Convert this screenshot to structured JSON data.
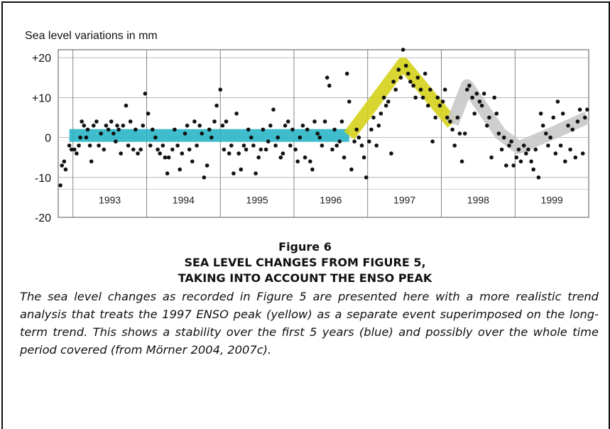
{
  "chart_data": {
    "type": "scatter",
    "ylabel": "Sea level variations in mm",
    "yticks": [
      "+20",
      "+10",
      "0",
      "-10",
      "-20"
    ],
    "ylim": [
      -20,
      22
    ],
    "xlim": [
      1992.8,
      2000.0
    ],
    "year_labels": [
      "1993",
      "1994",
      "1995",
      "1996",
      "1997",
      "1998",
      "1999"
    ],
    "grid": true,
    "series": [
      {
        "values": [
          [
            1992.83,
            -12
          ],
          [
            1992.85,
            -7
          ],
          [
            1992.88,
            -6
          ],
          [
            1992.9,
            -8
          ],
          [
            1992.95,
            -2
          ],
          [
            1992.98,
            -3
          ],
          [
            1993.02,
            -3
          ],
          [
            1993.05,
            -4
          ],
          [
            1993.08,
            -2
          ],
          [
            1993.1,
            0
          ],
          [
            1993.12,
            4
          ],
          [
            1993.15,
            3
          ],
          [
            1993.18,
            0
          ],
          [
            1993.2,
            2
          ],
          [
            1993.23,
            -2
          ],
          [
            1993.25,
            -6
          ],
          [
            1993.28,
            3
          ],
          [
            1993.32,
            4
          ],
          [
            1993.35,
            -2
          ],
          [
            1993.38,
            1
          ],
          [
            1993.42,
            -3
          ],
          [
            1993.45,
            3
          ],
          [
            1993.48,
            2
          ],
          [
            1993.52,
            4
          ],
          [
            1993.55,
            1
          ],
          [
            1993.58,
            -1
          ],
          [
            1993.6,
            3
          ],
          [
            1993.62,
            2
          ],
          [
            1993.65,
            -4
          ],
          [
            1993.68,
            3
          ],
          [
            1993.72,
            8
          ],
          [
            1993.75,
            -2
          ],
          [
            1993.78,
            4
          ],
          [
            1993.82,
            -3
          ],
          [
            1993.85,
            2
          ],
          [
            1993.88,
            -4
          ],
          [
            1993.92,
            -3
          ],
          [
            1993.95,
            3
          ],
          [
            1993.98,
            11
          ],
          [
            1994.02,
            6
          ],
          [
            1994.05,
            -2
          ],
          [
            1994.08,
            2
          ],
          [
            1994.12,
            0
          ],
          [
            1994.15,
            -3
          ],
          [
            1994.18,
            -4
          ],
          [
            1994.22,
            -2
          ],
          [
            1994.25,
            -5
          ],
          [
            1994.28,
            -9
          ],
          [
            1994.3,
            -5
          ],
          [
            1994.35,
            -3
          ],
          [
            1994.38,
            2
          ],
          [
            1994.42,
            -2
          ],
          [
            1994.45,
            -8
          ],
          [
            1994.48,
            -4
          ],
          [
            1994.52,
            1
          ],
          [
            1994.55,
            3
          ],
          [
            1994.58,
            -3
          ],
          [
            1994.62,
            -6
          ],
          [
            1994.65,
            4
          ],
          [
            1994.68,
            -2
          ],
          [
            1994.72,
            3
          ],
          [
            1994.75,
            1
          ],
          [
            1994.78,
            -10
          ],
          [
            1994.82,
            -7
          ],
          [
            1994.85,
            2
          ],
          [
            1994.88,
            0
          ],
          [
            1994.92,
            4
          ],
          [
            1994.95,
            8
          ],
          [
            1995.0,
            12
          ],
          [
            1995.03,
            3
          ],
          [
            1995.05,
            -3
          ],
          [
            1995.08,
            4
          ],
          [
            1995.12,
            -4
          ],
          [
            1995.15,
            -2
          ],
          [
            1995.18,
            -9
          ],
          [
            1995.22,
            6
          ],
          [
            1995.25,
            -4
          ],
          [
            1995.28,
            -8
          ],
          [
            1995.32,
            -2
          ],
          [
            1995.35,
            -3
          ],
          [
            1995.38,
            2
          ],
          [
            1995.42,
            0
          ],
          [
            1995.45,
            -2
          ],
          [
            1995.48,
            -9
          ],
          [
            1995.52,
            -5
          ],
          [
            1995.55,
            -3
          ],
          [
            1995.58,
            2
          ],
          [
            1995.62,
            -3
          ],
          [
            1995.65,
            -1
          ],
          [
            1995.68,
            3
          ],
          [
            1995.72,
            7
          ],
          [
            1995.75,
            -2
          ],
          [
            1995.78,
            0
          ],
          [
            1995.82,
            -5
          ],
          [
            1995.85,
            -4
          ],
          [
            1995.88,
            3
          ],
          [
            1995.92,
            4
          ],
          [
            1995.95,
            -2
          ],
          [
            1995.98,
            2
          ],
          [
            1996.02,
            -3
          ],
          [
            1996.05,
            -6
          ],
          [
            1996.08,
            0
          ],
          [
            1996.12,
            3
          ],
          [
            1996.15,
            -5
          ],
          [
            1996.18,
            2
          ],
          [
            1996.22,
            -6
          ],
          [
            1996.25,
            -8
          ],
          [
            1996.28,
            4
          ],
          [
            1996.32,
            1
          ],
          [
            1996.35,
            0
          ],
          [
            1996.38,
            -2
          ],
          [
            1996.42,
            4
          ],
          [
            1996.45,
            15
          ],
          [
            1996.48,
            13
          ],
          [
            1996.52,
            -3
          ],
          [
            1996.55,
            2
          ],
          [
            1996.58,
            -2
          ],
          [
            1996.62,
            -1
          ],
          [
            1996.65,
            4
          ],
          [
            1996.68,
            -5
          ],
          [
            1996.72,
            16
          ],
          [
            1996.75,
            9
          ],
          [
            1996.78,
            -8
          ],
          [
            1996.82,
            -1
          ],
          [
            1996.85,
            2
          ],
          [
            1996.88,
            0
          ],
          [
            1996.92,
            -2
          ],
          [
            1996.95,
            -5
          ],
          [
            1996.98,
            -10
          ],
          [
            1997.02,
            -1
          ],
          [
            1997.05,
            2
          ],
          [
            1997.08,
            5
          ],
          [
            1997.12,
            -2
          ],
          [
            1997.15,
            3
          ],
          [
            1997.18,
            6
          ],
          [
            1997.22,
            10
          ],
          [
            1997.25,
            8
          ],
          [
            1997.28,
            9
          ],
          [
            1997.32,
            -4
          ],
          [
            1997.35,
            14
          ],
          [
            1997.38,
            12
          ],
          [
            1997.42,
            17
          ],
          [
            1997.45,
            15
          ],
          [
            1997.48,
            22
          ],
          [
            1997.52,
            18
          ],
          [
            1997.55,
            16
          ],
          [
            1997.58,
            14
          ],
          [
            1997.62,
            13
          ],
          [
            1997.65,
            10
          ],
          [
            1997.68,
            15
          ],
          [
            1997.72,
            12
          ],
          [
            1997.75,
            10
          ],
          [
            1997.78,
            16
          ],
          [
            1997.82,
            8
          ],
          [
            1997.85,
            12
          ],
          [
            1997.88,
            -1
          ],
          [
            1997.92,
            5
          ],
          [
            1997.95,
            10
          ],
          [
            1997.98,
            8
          ],
          [
            1998.02,
            9
          ],
          [
            1998.05,
            12
          ],
          [
            1998.08,
            5
          ],
          [
            1998.12,
            4
          ],
          [
            1998.15,
            2
          ],
          [
            1998.18,
            -2
          ],
          [
            1998.22,
            5
          ],
          [
            1998.25,
            1
          ],
          [
            1998.28,
            -6
          ],
          [
            1998.32,
            1
          ],
          [
            1998.35,
            12
          ],
          [
            1998.38,
            13
          ],
          [
            1998.42,
            10
          ],
          [
            1998.45,
            6
          ],
          [
            1998.48,
            11
          ],
          [
            1998.52,
            9
          ],
          [
            1998.55,
            8
          ],
          [
            1998.58,
            11
          ],
          [
            1998.62,
            3
          ],
          [
            1998.65,
            5
          ],
          [
            1998.68,
            -5
          ],
          [
            1998.72,
            10
          ],
          [
            1998.75,
            6
          ],
          [
            1998.78,
            1
          ],
          [
            1998.82,
            -3
          ],
          [
            1998.85,
            0
          ],
          [
            1998.88,
            -7
          ],
          [
            1998.92,
            -2
          ],
          [
            1998.95,
            -1
          ],
          [
            1998.98,
            -7
          ],
          [
            1999.02,
            -5
          ],
          [
            1999.05,
            -3
          ],
          [
            1999.08,
            -6
          ],
          [
            1999.12,
            -2
          ],
          [
            1999.15,
            -4
          ],
          [
            1999.18,
            -3
          ],
          [
            1999.22,
            -6
          ],
          [
            1999.25,
            -8
          ],
          [
            1999.28,
            -3
          ],
          [
            1999.32,
            -10
          ],
          [
            1999.35,
            6
          ],
          [
            1999.38,
            3
          ],
          [
            1999.42,
            1
          ],
          [
            1999.45,
            -2
          ],
          [
            1999.48,
            0
          ],
          [
            1999.52,
            5
          ],
          [
            1999.55,
            -4
          ],
          [
            1999.58,
            9
          ],
          [
            1999.62,
            -2
          ],
          [
            1999.65,
            6
          ],
          [
            1999.68,
            -6
          ],
          [
            1999.72,
            3
          ],
          [
            1999.75,
            -3
          ],
          [
            1999.78,
            2
          ],
          [
            1999.82,
            -5
          ],
          [
            1999.85,
            4
          ],
          [
            1999.88,
            7
          ],
          [
            1999.92,
            -4
          ],
          [
            1999.95,
            5
          ],
          [
            1999.98,
            7
          ]
        ]
      }
    ],
    "trend_segments": [
      {
        "color": "#2ab6c7",
        "points": [
          [
            1992.95,
            0.5
          ],
          [
            1996.75,
            0.5
          ]
        ]
      },
      {
        "color": "#d6d21b",
        "points": [
          [
            1996.75,
            0.5
          ],
          [
            1997.48,
            18.5
          ],
          [
            1998.15,
            3.5
          ]
        ]
      },
      {
        "color": "#c9c9c9",
        "points": [
          [
            1998.15,
            3.5
          ],
          [
            1998.35,
            13
          ],
          [
            1998.8,
            1
          ],
          [
            1999.05,
            -2.5
          ],
          [
            1999.5,
            1
          ],
          [
            1999.98,
            5
          ]
        ]
      }
    ]
  },
  "caption": {
    "figure_label": "Figure 6",
    "title_line1": "SEA LEVEL CHANGES FROM FIGURE 5,",
    "title_line2": "TAKING INTO ACCOUNT THE ENSO PEAK",
    "description": "The sea level changes as recorded in Figure 5 are presented here with a more realistic trend analysis that treats the 1997 ENSO peak (yellow) as a separate event superimposed on the long-term trend. This shows a stability over the first 5 years (blue) and possibly over the whole time period covered (from Mörner 2004, 2007c)."
  }
}
